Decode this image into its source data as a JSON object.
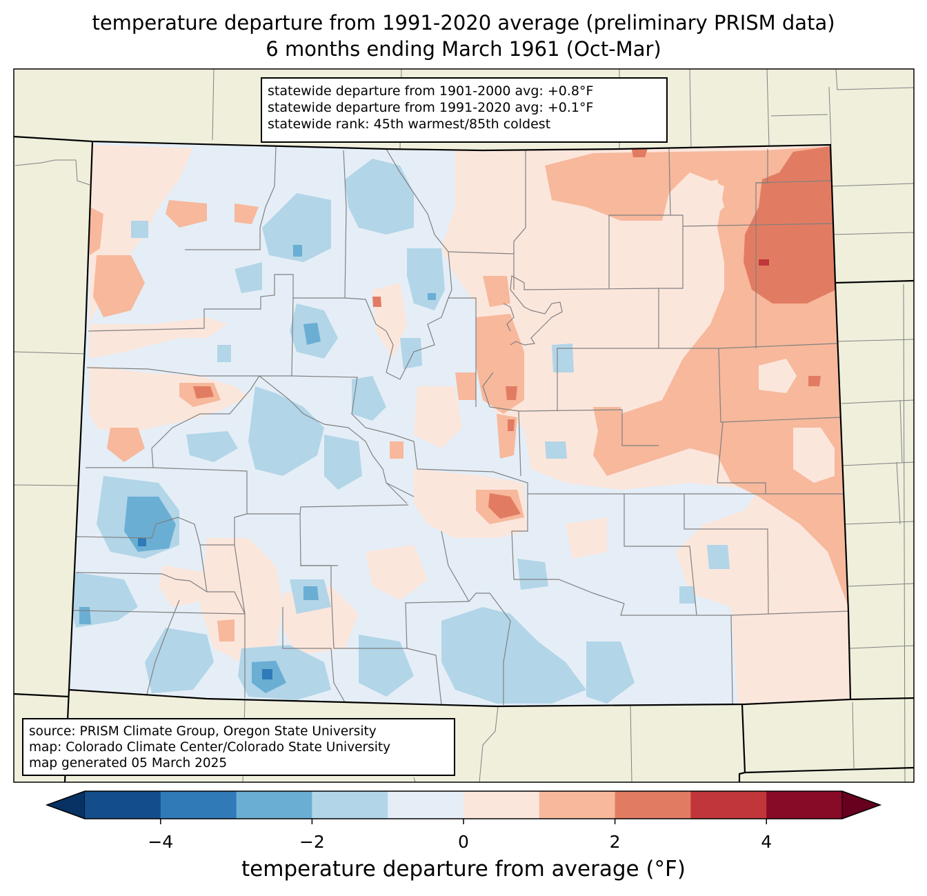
{
  "title": {
    "line1": "temperature departure from 1991-2020 average (preliminary PRISM data)",
    "line2": "6 months ending March 1961 (Oct-Mar)"
  },
  "stats": {
    "line1": "statewide departure from 1901-2000 avg: +0.8°F",
    "line2": "statewide departure from 1991-2020 avg: +0.1°F",
    "line3": "statewide rank: 45th warmest/85th coldest"
  },
  "source": {
    "line1": "source: PRISM Climate Group, Oregon State University",
    "line2": "map: Colorado Climate Center/Colorado State University",
    "line3": "map generated 05 March 2025"
  },
  "colorbar": {
    "label": "temperature departure from average (°F)",
    "ticks": [
      "−4",
      "−2",
      "0",
      "2",
      "4"
    ],
    "min": -5,
    "max": 5,
    "step": 1,
    "colors": [
      "#134d8a",
      "#2f7ab7",
      "#6aaed4",
      "#b2d5e8",
      "#e5eef6",
      "#fbe6dc",
      "#f7b89c",
      "#e17c62",
      "#c0363a",
      "#870a26"
    ],
    "under_color": "#083264",
    "over_color": "#67001f"
  },
  "map_colors": {
    "background": "#efefdc",
    "state_outline": "#000000",
    "county_lines": "#808080"
  }
}
